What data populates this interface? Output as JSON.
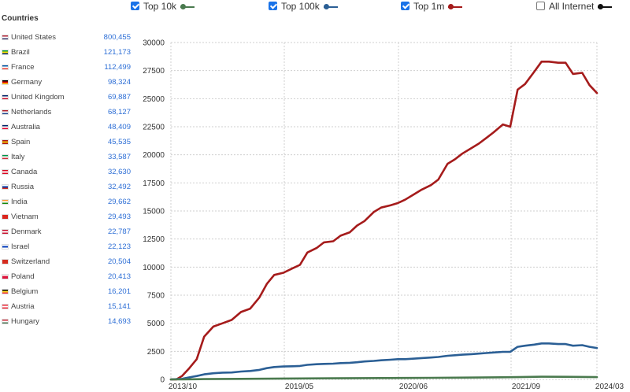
{
  "panel": {
    "title": "Countries",
    "countries": [
      {
        "name": "United States",
        "count": "800,455",
        "flag": [
          "#b22234",
          "#ffffff",
          "#3c3b6e"
        ]
      },
      {
        "name": "Brazil",
        "count": "121,173",
        "flag": [
          "#009c3b",
          "#ffdf00",
          "#002776"
        ]
      },
      {
        "name": "France",
        "count": "112,499",
        "flag": [
          "#0055a4",
          "#ffffff",
          "#ef4135"
        ]
      },
      {
        "name": "Germany",
        "count": "98,324",
        "flag": [
          "#000000",
          "#dd0000",
          "#ffce00"
        ]
      },
      {
        "name": "United Kingdom",
        "count": "69,887",
        "flag": [
          "#012169",
          "#ffffff",
          "#c8102e"
        ]
      },
      {
        "name": "Netherlands",
        "count": "68,127",
        "flag": [
          "#ae1c28",
          "#ffffff",
          "#21468b"
        ]
      },
      {
        "name": "Australia",
        "count": "48,409",
        "flag": [
          "#012169",
          "#ffffff",
          "#e4002b"
        ]
      },
      {
        "name": "Spain",
        "count": "45,535",
        "flag": [
          "#aa151b",
          "#f1bf00",
          "#aa151b"
        ]
      },
      {
        "name": "Italy",
        "count": "33,587",
        "flag": [
          "#009246",
          "#ffffff",
          "#ce2b37"
        ]
      },
      {
        "name": "Canada",
        "count": "32,630",
        "flag": [
          "#d80621",
          "#ffffff",
          "#d80621"
        ]
      },
      {
        "name": "Russia",
        "count": "32,492",
        "flag": [
          "#ffffff",
          "#0039a6",
          "#d52b1e"
        ]
      },
      {
        "name": "India",
        "count": "29,662",
        "flag": [
          "#ff9933",
          "#ffffff",
          "#138808"
        ]
      },
      {
        "name": "Vietnam",
        "count": "29,493",
        "flag": [
          "#da251d",
          "#da251d",
          "#da251d"
        ]
      },
      {
        "name": "Denmark",
        "count": "22,787",
        "flag": [
          "#c8102e",
          "#ffffff",
          "#c8102e"
        ]
      },
      {
        "name": "Israel",
        "count": "22,123",
        "flag": [
          "#ffffff",
          "#0038b8",
          "#ffffff"
        ]
      },
      {
        "name": "Switzerland",
        "count": "20,504",
        "flag": [
          "#d52b1e",
          "#d52b1e",
          "#d52b1e"
        ]
      },
      {
        "name": "Poland",
        "count": "20,413",
        "flag": [
          "#ffffff",
          "#dc143c",
          "#dc143c"
        ]
      },
      {
        "name": "Belgium",
        "count": "16,201",
        "flag": [
          "#000000",
          "#fdda24",
          "#ef3340"
        ]
      },
      {
        "name": "Austria",
        "count": "15,141",
        "flag": [
          "#ed2939",
          "#ffffff",
          "#ed2939"
        ]
      },
      {
        "name": "Hungary",
        "count": "14,693",
        "flag": [
          "#ce2939",
          "#ffffff",
          "#477050"
        ]
      }
    ]
  },
  "legend": [
    {
      "label": "Top 10k",
      "checked": true,
      "color": "#4a7a4e"
    },
    {
      "label": "Top 100k",
      "checked": true,
      "color": "#2b5f95"
    },
    {
      "label": "Top 1m",
      "checked": true,
      "color": "#a51b1b"
    },
    {
      "label": "All Internet",
      "checked": false,
      "color": "#111111"
    }
  ],
  "chart_data": {
    "type": "line",
    "title": "",
    "xlabel": "",
    "ylabel": "",
    "x_range": [
      "2013-10",
      "2024-03"
    ],
    "x_ticks": [
      "2013/10",
      "2019/05",
      "2020/06",
      "2021/09",
      "2024/03"
    ],
    "y_range": [
      0,
      30000
    ],
    "y_ticks": [
      0,
      2500,
      5000,
      7500,
      10000,
      12500,
      15000,
      17500,
      20000,
      22500,
      25000,
      27500,
      30000
    ],
    "grid": "dashed",
    "legend": "top",
    "series": [
      {
        "name": "Top 1m",
        "color": "#a51b1b",
        "points": [
          [
            0,
            0
          ],
          [
            3,
            0
          ],
          [
            6,
            300
          ],
          [
            10,
            1000
          ],
          [
            14,
            1800
          ],
          [
            18,
            3800
          ],
          [
            23,
            4700
          ],
          [
            28,
            5000
          ],
          [
            33,
            5300
          ],
          [
            38,
            6000
          ],
          [
            43,
            6300
          ],
          [
            48,
            7300
          ],
          [
            52,
            8500
          ],
          [
            56,
            9300
          ],
          [
            61,
            9500
          ],
          [
            66,
            9900
          ],
          [
            70,
            10200
          ],
          [
            74,
            11300
          ],
          [
            79,
            11700
          ],
          [
            83,
            12200
          ],
          [
            88,
            12300
          ],
          [
            92,
            12800
          ],
          [
            97,
            13100
          ],
          [
            101,
            13700
          ],
          [
            105,
            14100
          ],
          [
            110,
            14900
          ],
          [
            114,
            15300
          ],
          [
            119,
            15500
          ],
          [
            123,
            15700
          ],
          [
            127,
            16000
          ],
          [
            132,
            16500
          ],
          [
            136,
            16900
          ],
          [
            141,
            17300
          ],
          [
            145,
            17800
          ],
          [
            150,
            19200
          ],
          [
            154,
            19600
          ],
          [
            158,
            20100
          ],
          [
            163,
            20600
          ],
          [
            167,
            21000
          ],
          [
            171,
            21500
          ],
          [
            175,
            22000
          ],
          [
            180,
            22700
          ],
          [
            184,
            22500
          ],
          [
            188,
            25800
          ],
          [
            192,
            26300
          ],
          [
            197,
            27400
          ],
          [
            201,
            28300
          ],
          [
            205,
            28300
          ],
          [
            210,
            28200
          ],
          [
            214,
            28200
          ],
          [
            218,
            27200
          ],
          [
            223,
            27300
          ],
          [
            227,
            26200
          ],
          [
            231,
            25500
          ]
        ]
      },
      {
        "name": "Top 100k",
        "color": "#2b5f95",
        "points": [
          [
            0,
            0
          ],
          [
            6,
            50
          ],
          [
            10,
            180
          ],
          [
            14,
            300
          ],
          [
            18,
            450
          ],
          [
            23,
            550
          ],
          [
            28,
            600
          ],
          [
            33,
            620
          ],
          [
            38,
            700
          ],
          [
            43,
            750
          ],
          [
            48,
            850
          ],
          [
            52,
            1000
          ],
          [
            56,
            1100
          ],
          [
            61,
            1150
          ],
          [
            66,
            1170
          ],
          [
            70,
            1200
          ],
          [
            74,
            1300
          ],
          [
            79,
            1350
          ],
          [
            83,
            1380
          ],
          [
            88,
            1400
          ],
          [
            92,
            1450
          ],
          [
            97,
            1480
          ],
          [
            101,
            1530
          ],
          [
            105,
            1600
          ],
          [
            110,
            1650
          ],
          [
            114,
            1700
          ],
          [
            119,
            1750
          ],
          [
            123,
            1800
          ],
          [
            127,
            1800
          ],
          [
            132,
            1850
          ],
          [
            136,
            1900
          ],
          [
            141,
            1950
          ],
          [
            145,
            2000
          ],
          [
            150,
            2100
          ],
          [
            154,
            2150
          ],
          [
            158,
            2200
          ],
          [
            163,
            2250
          ],
          [
            167,
            2300
          ],
          [
            171,
            2350
          ],
          [
            175,
            2400
          ],
          [
            180,
            2450
          ],
          [
            184,
            2450
          ],
          [
            188,
            2900
          ],
          [
            192,
            3000
          ],
          [
            197,
            3100
          ],
          [
            201,
            3200
          ],
          [
            205,
            3200
          ],
          [
            210,
            3150
          ],
          [
            214,
            3150
          ],
          [
            218,
            3000
          ],
          [
            223,
            3050
          ],
          [
            227,
            2900
          ],
          [
            231,
            2800
          ]
        ]
      },
      {
        "name": "Top 10k",
        "color": "#4a7a4e",
        "points": [
          [
            0,
            0
          ],
          [
            6,
            10
          ],
          [
            18,
            30
          ],
          [
            38,
            50
          ],
          [
            61,
            80
          ],
          [
            88,
            100
          ],
          [
            114,
            120
          ],
          [
            141,
            140
          ],
          [
            167,
            170
          ],
          [
            188,
            200
          ],
          [
            201,
            240
          ],
          [
            214,
            230
          ],
          [
            231,
            200
          ]
        ]
      }
    ]
  }
}
